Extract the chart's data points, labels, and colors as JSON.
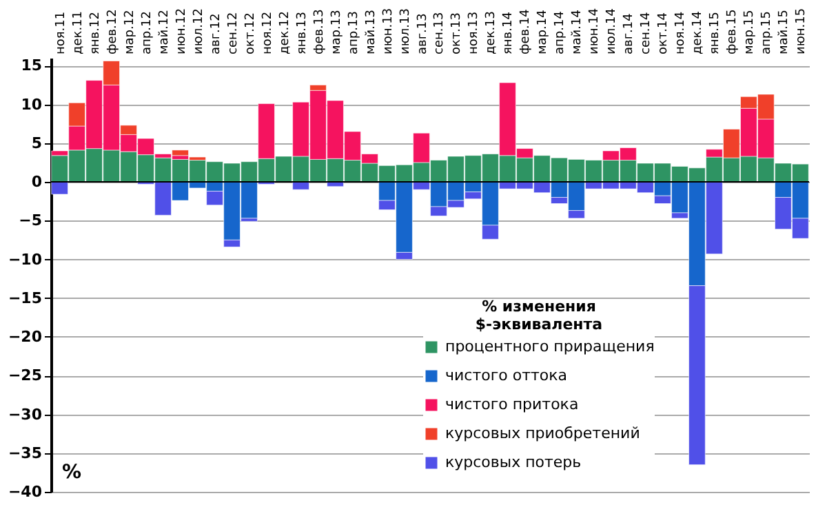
{
  "chart_data": {
    "type": "bar",
    "stacked": true,
    "legend_title": "% изменения\n$-эквивалента",
    "legend": "bottom",
    "grid": "y",
    "categories": [
      "ноя.11",
      "дек.11",
      "янв.12",
      "фев.12",
      "мар.12",
      "апр.12",
      "май.12",
      "июн.12",
      "июл.12",
      "авг.12",
      "сен.12",
      "окт.12",
      "ноя.12",
      "дек.12",
      "янв.13",
      "фев.13",
      "мар.13",
      "апр.13",
      "май.13",
      "июн.13",
      "июл.13",
      "авг.13",
      "сен.13",
      "окт.13",
      "ноя.13",
      "дек.13",
      "янв.14",
      "фев.14",
      "мар.14",
      "апр.14",
      "май.14",
      "июн.14",
      "июл.14",
      "авг.14",
      "сен.14",
      "окт.14",
      "ноя.14",
      "дек.14",
      "янв.15",
      "фев.15",
      "мар.15",
      "апр.15",
      "май.15",
      "июн.15"
    ],
    "series": [
      {
        "name": "процентного приращения",
        "color": "#2e9463",
        "values": [
          3.4,
          4.1,
          4.3,
          4.1,
          3.9,
          3.5,
          3.1,
          2.9,
          2.8,
          2.6,
          2.4,
          2.6,
          3.0,
          3.3,
          3.3,
          2.9,
          3.0,
          2.8,
          2.4,
          2.1,
          2.2,
          2.5,
          2.8,
          3.3,
          3.4,
          3.6,
          3.4,
          3.1,
          3.4,
          3.1,
          2.9,
          2.8,
          2.8,
          2.8,
          2.4,
          2.4,
          2.0,
          1.8,
          3.2,
          3.1,
          3.3,
          3.1,
          2.4,
          2.3
        ]
      },
      {
        "name": "чистого оттока",
        "color": "#1666cc",
        "values": [
          null,
          null,
          null,
          null,
          null,
          null,
          null,
          -2.4,
          -0.8,
          -1.2,
          -7.5,
          -4.7,
          null,
          null,
          null,
          null,
          null,
          null,
          null,
          -2.4,
          -9.1,
          null,
          -3.2,
          -2.4,
          -1.3,
          -5.6,
          null,
          null,
          null,
          -2.0,
          -3.7,
          null,
          null,
          null,
          null,
          -1.8,
          -4.0,
          -13.4,
          null,
          null,
          null,
          null,
          -2.0,
          -4.7
        ]
      },
      {
        "name": "чистого притока",
        "color": "#f5135f",
        "values": [
          0.6,
          3.1,
          8.8,
          8.4,
          2.2,
          2.1,
          0.5,
          0.5,
          null,
          null,
          null,
          null,
          7.1,
          null,
          7.0,
          8.9,
          7.5,
          3.7,
          1.2,
          null,
          null,
          3.8,
          null,
          null,
          null,
          null,
          9.4,
          1.2,
          null,
          null,
          null,
          null,
          1.2,
          1.6,
          null,
          null,
          null,
          null,
          1.0,
          null,
          6.2,
          5.0,
          null,
          null
        ]
      },
      {
        "name": "курсовых приобретений",
        "color": "#f0402a",
        "values": [
          null,
          3.0,
          null,
          3.1,
          1.2,
          null,
          null,
          0.7,
          0.4,
          null,
          null,
          null,
          null,
          null,
          null,
          0.7,
          null,
          null,
          null,
          null,
          null,
          null,
          null,
          null,
          null,
          null,
          null,
          null,
          null,
          null,
          null,
          null,
          null,
          null,
          null,
          null,
          null,
          null,
          null,
          3.7,
          1.5,
          3.2,
          null,
          null
        ]
      },
      {
        "name": "курсовых потерь",
        "color": "#5050e8",
        "values": [
          -1.6,
          null,
          null,
          null,
          null,
          -0.3,
          -4.3,
          null,
          null,
          -1.8,
          -0.9,
          -0.4,
          -0.3,
          null,
          -1.0,
          null,
          -0.6,
          null,
          null,
          -1.2,
          -0.9,
          -1.0,
          -1.2,
          -0.9,
          -0.9,
          -1.8,
          -0.9,
          -0.9,
          -1.4,
          -0.8,
          -1.0,
          -0.9,
          -0.9,
          -0.9,
          -1.4,
          -1.0,
          -0.7,
          -23.1,
          -9.3,
          null,
          null,
          null,
          -4.1,
          -2.6
        ]
      }
    ],
    "ylim": [
      -40,
      16
    ],
    "yticks": [
      -40,
      -35,
      -30,
      -25,
      -20,
      -15,
      -10,
      -5,
      0,
      5,
      10,
      15
    ],
    "annotations": [
      "%"
    ]
  }
}
